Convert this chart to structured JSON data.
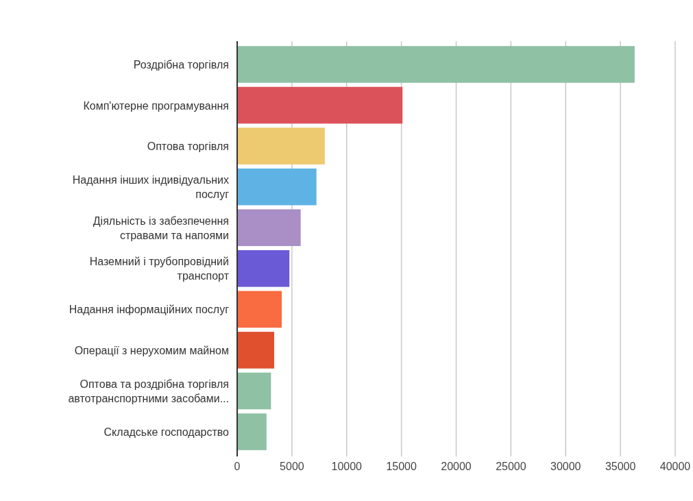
{
  "chart_data": {
    "type": "bar",
    "orientation": "horizontal",
    "categories": [
      "Роздрібна торгівля",
      "Комп'ютерне програмування",
      "Оптова торгівля",
      "Надання інших індивідуальних послуг",
      "Діяльність із забезпечення стравами та напоями",
      "Наземний і трубопровідний транспорт",
      "Надання інформаційних послуг",
      "Операції з нерухомим майном",
      "Оптова та роздрібна торгівля автотранспортними засобами...",
      "Складське господарство"
    ],
    "values": [
      36300,
      15100,
      8000,
      7240,
      5800,
      4770,
      4070,
      3380,
      3090,
      2680
    ],
    "colors": [
      "#8fc1a5",
      "#dc525a",
      "#edc96f",
      "#5fb3e4",
      "#a98fc5",
      "#6a5ad6",
      "#f96b40",
      "#e0502f",
      "#8fc1a5",
      "#8fc1a5"
    ],
    "xlim": [
      0,
      40000
    ],
    "xticks": [
      0,
      5000,
      10000,
      15000,
      20000,
      25000,
      30000,
      35000,
      40000
    ],
    "grid": "x"
  }
}
